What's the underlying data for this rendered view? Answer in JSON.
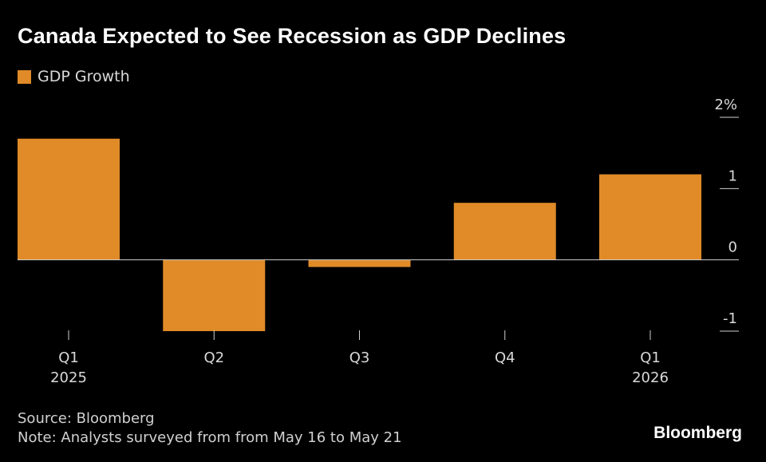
{
  "chart_data": {
    "type": "bar",
    "title": "Canada Expected to See Recession as GDP Declines",
    "legend": [
      "GDP Growth"
    ],
    "categories": [
      [
        "Q1",
        "2025"
      ],
      [
        "Q2",
        ""
      ],
      [
        "Q3",
        ""
      ],
      [
        "Q4",
        ""
      ],
      [
        "Q1",
        "2026"
      ]
    ],
    "series": [
      {
        "name": "GDP Growth",
        "values": [
          1.7,
          -1.0,
          -0.1,
          0.8,
          1.2
        ],
        "color": "#e08b28"
      }
    ],
    "yticks": [
      {
        "value": 2,
        "label": "2%"
      },
      {
        "value": 1,
        "label": "1"
      },
      {
        "value": 0,
        "label": "0"
      },
      {
        "value": -1,
        "label": "-1"
      }
    ],
    "ylim": [
      -1,
      2
    ],
    "xlabel": "",
    "ylabel": "",
    "grid": false,
    "legend_position": "top-left",
    "y_axis_position": "right"
  },
  "footer": {
    "source": "Source: Bloomberg",
    "note": "Note: Analysts surveyed from from May 16 to May 21"
  },
  "brand": "Bloomberg"
}
